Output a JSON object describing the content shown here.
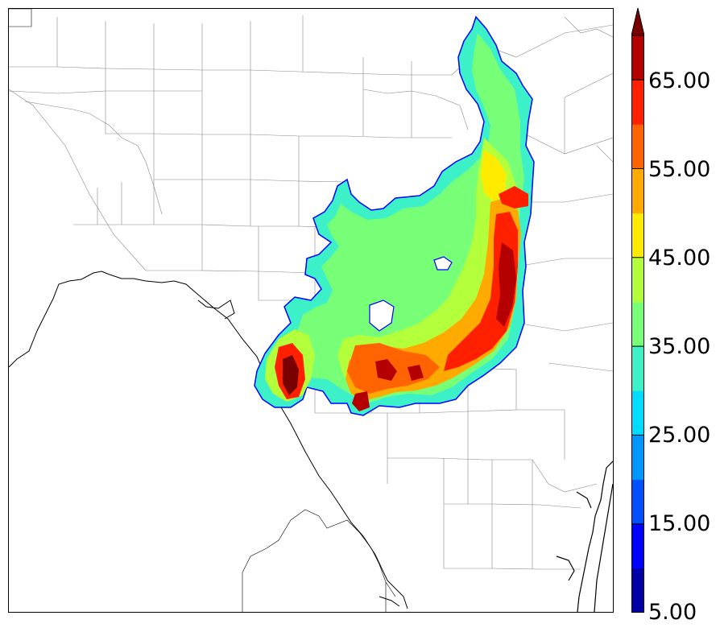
{
  "colorbar": {
    "labels": [
      "65.00",
      "55.00",
      "45.00",
      "35.00",
      "25.00",
      "15.00",
      "5.00"
    ],
    "levels": [
      5,
      10,
      15,
      20,
      25,
      30,
      35,
      40,
      45,
      50,
      55,
      60,
      65,
      70
    ],
    "colors": [
      "#0000a8",
      "#0000ff",
      "#0050ff",
      "#0096ff",
      "#00dcff",
      "#3cf0c8",
      "#78ff78",
      "#b4ff3c",
      "#ffeb00",
      "#ffaa00",
      "#ff6400",
      "#ff2000",
      "#b40000",
      "#780000"
    ],
    "extend": "max"
  },
  "map": {
    "land_color": "#ffffff",
    "border_color": "#000000",
    "county_line_color": "#888888",
    "field_outline_color": "#0000ff"
  }
}
